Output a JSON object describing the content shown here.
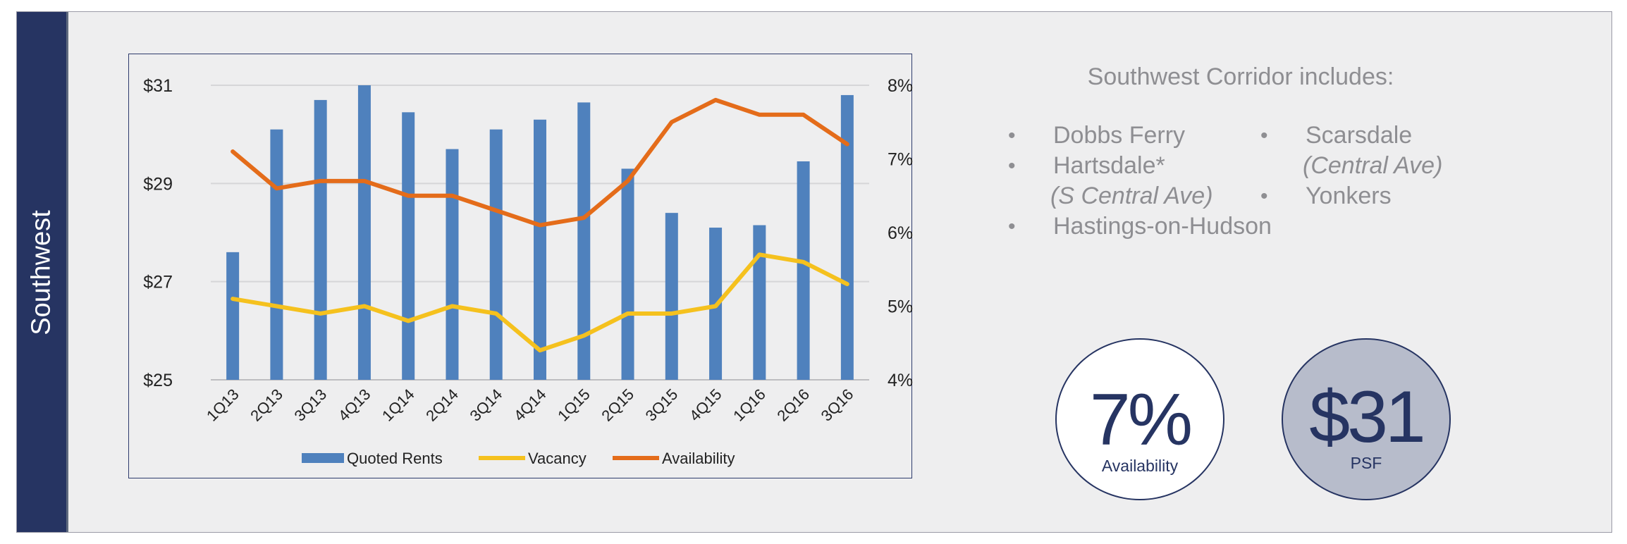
{
  "sidebar": {
    "label": "Southwest"
  },
  "corridor": {
    "title": "Southwest Corridor includes:",
    "left_items": [
      {
        "name": "Dobbs Ferry",
        "sub": ""
      },
      {
        "name": "Hartsdale*",
        "sub": "(S Central Ave)"
      },
      {
        "name": "Hastings-on-Hudson",
        "sub": ""
      }
    ],
    "right_items": [
      {
        "name": "Scarsdale",
        "sub": "(Central Ave)"
      },
      {
        "name": "Yonkers",
        "sub": ""
      }
    ],
    "bullet": "•"
  },
  "stats": {
    "availability": {
      "value": "7%",
      "label": "Availability"
    },
    "psf": {
      "value": "$31",
      "label": "PSF"
    }
  },
  "chart_data": {
    "type": "bar",
    "categories": [
      "1Q13",
      "2Q13",
      "3Q13",
      "4Q13",
      "1Q14",
      "2Q14",
      "3Q14",
      "4Q14",
      "1Q15",
      "2Q15",
      "3Q15",
      "4Q15",
      "1Q16",
      "2Q16",
      "3Q16"
    ],
    "y_left": {
      "ticks": [
        "$31",
        "$29",
        "$27",
        "$25"
      ],
      "tick_values": [
        31,
        29,
        27,
        25
      ],
      "range": [
        25,
        31
      ]
    },
    "y_right": {
      "ticks": [
        "8%",
        "7%",
        "6%",
        "5%",
        "4%"
      ],
      "tick_values": [
        8,
        7,
        6,
        5,
        4
      ],
      "range": [
        4,
        8
      ]
    },
    "grid": true,
    "legend_position": "bottom",
    "series": [
      {
        "name": "Quoted Rents",
        "kind": "bar",
        "axis": "left",
        "color": "#4f81bd",
        "values": [
          27.6,
          30.1,
          30.7,
          31.0,
          30.45,
          29.7,
          30.1,
          30.3,
          30.65,
          29.3,
          28.4,
          28.1,
          28.15,
          29.45,
          30.8
        ]
      },
      {
        "name": "Vacancy",
        "kind": "line",
        "axis": "right",
        "color": "#f5c11e",
        "values": [
          5.1,
          5.0,
          4.9,
          5.0,
          4.8,
          5.0,
          4.9,
          4.4,
          4.6,
          4.9,
          4.9,
          5.0,
          5.7,
          5.6,
          5.3
        ]
      },
      {
        "name": "Availability",
        "kind": "line",
        "axis": "right",
        "color": "#e46c1a",
        "values": [
          7.1,
          6.6,
          6.7,
          6.7,
          6.5,
          6.5,
          6.3,
          6.1,
          6.2,
          6.7,
          7.5,
          7.8,
          7.6,
          7.6,
          7.2
        ]
      }
    ]
  }
}
